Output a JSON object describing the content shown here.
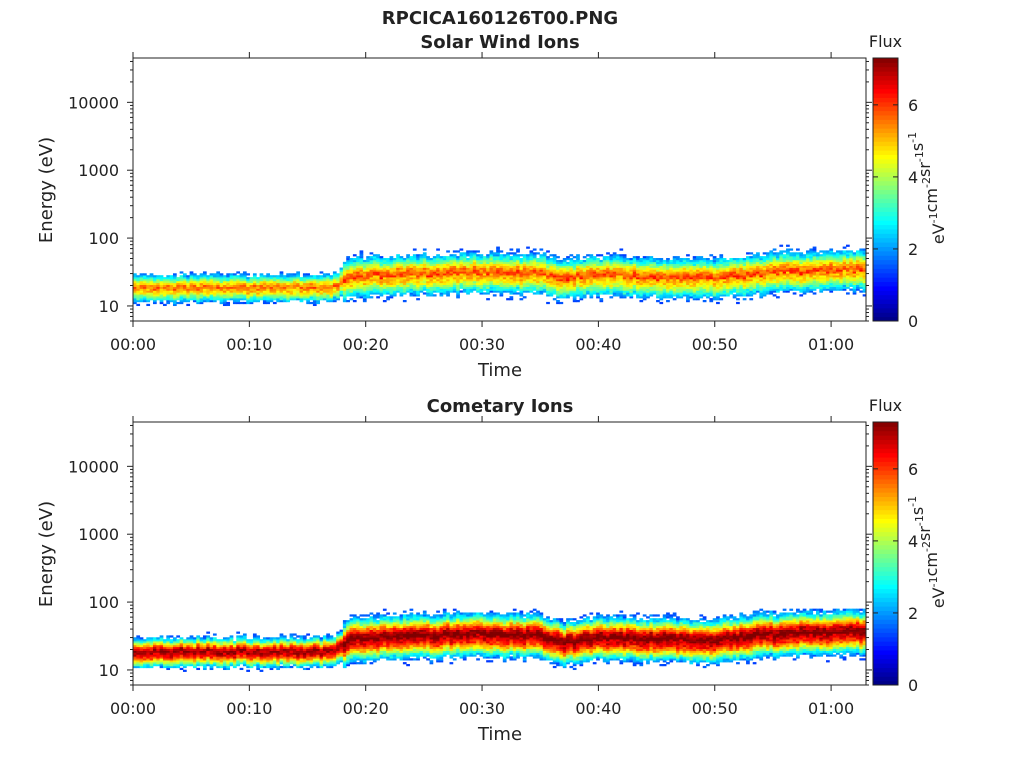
{
  "figure_title": "RPCICA160126T00.PNG",
  "colorbar": {
    "label": "Flux",
    "unit_parts": [
      "eV",
      "-1",
      "cm",
      "-2",
      "sr",
      "-1",
      "s",
      "-1"
    ],
    "ticks": [
      "0",
      "2",
      "4",
      "6"
    ],
    "range": [
      0,
      7.3
    ],
    "colormap": [
      "#00007f",
      "#0000ff",
      "#007fff",
      "#00ffff",
      "#7fff7f",
      "#ffff00",
      "#ff7f00",
      "#ff0000",
      "#7f0000"
    ]
  },
  "chart_data": [
    {
      "type": "heatmap",
      "title": "Solar Wind Ions",
      "xlabel": "Time",
      "ylabel": "Energy (eV)",
      "y_scale": "log",
      "ylim": [
        6,
        45000
      ],
      "xlim_minutes": [
        0,
        63
      ],
      "x_tick_labels": [
        "00:00",
        "00:10",
        "00:20",
        "00:30",
        "00:40",
        "00:50",
        "01:00"
      ],
      "x_tick_minutes": [
        0,
        10,
        20,
        30,
        40,
        50,
        60
      ],
      "y_tick_labels": [
        "10",
        "100",
        "1000",
        "10000"
      ],
      "y_tick_values": [
        10,
        100,
        1000,
        10000
      ],
      "band_center_eV": [
        [
          0,
          18
        ],
        [
          17,
          18
        ],
        [
          19,
          26
        ],
        [
          30,
          30
        ],
        [
          35,
          28
        ],
        [
          37,
          24
        ],
        [
          40,
          27
        ],
        [
          50,
          24
        ],
        [
          55,
          30
        ],
        [
          63,
          33
        ]
      ],
      "peak_flux": 5.2,
      "sparse_top_eV": 80
    },
    {
      "type": "heatmap",
      "title": "Cometary Ions",
      "xlabel": "Time",
      "ylabel": "Energy (eV)",
      "y_scale": "log",
      "ylim": [
        6,
        45000
      ],
      "xlim_minutes": [
        0,
        63
      ],
      "x_tick_labels": [
        "00:00",
        "00:10",
        "00:20",
        "00:30",
        "00:40",
        "00:50",
        "01:00"
      ],
      "x_tick_minutes": [
        0,
        10,
        20,
        30,
        40,
        50,
        60
      ],
      "y_tick_labels": [
        "10",
        "100",
        "1000",
        "10000"
      ],
      "y_tick_values": [
        10,
        100,
        1000,
        10000
      ],
      "band_center_eV": [
        [
          0,
          18
        ],
        [
          17,
          18
        ],
        [
          19,
          28
        ],
        [
          30,
          32
        ],
        [
          35,
          30
        ],
        [
          37,
          24
        ],
        [
          40,
          28
        ],
        [
          50,
          26
        ],
        [
          55,
          32
        ],
        [
          63,
          35
        ]
      ],
      "peak_flux": 6.8,
      "sparse_top_eV": 80
    }
  ]
}
